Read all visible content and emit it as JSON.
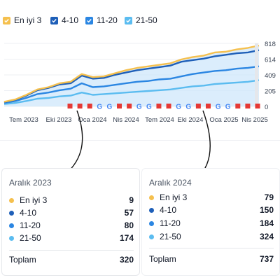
{
  "legend": [
    {
      "label": "En iyi 3",
      "color": "#f5c04e"
    },
    {
      "label": "4-10",
      "color": "#1e5fb8"
    },
    {
      "label": "11-20",
      "color": "#2b86e2"
    },
    {
      "label": "21-50",
      "color": "#5bbcf0"
    }
  ],
  "chart_data": {
    "type": "area",
    "x_ticks": [
      "Tem 2023",
      "Eki 2023",
      "Oca 2024",
      "Nis 2024",
      "Tem 2024",
      "Eki 2024",
      "Oca 2025",
      "Nis 2025"
    ],
    "y_ticks": [
      "818",
      "614",
      "409",
      "205",
      "0"
    ],
    "ylim": [
      0,
      818
    ],
    "x": [
      "2023-05",
      "2023-06",
      "2023-07",
      "2023-08",
      "2023-09",
      "2023-10",
      "2023-11",
      "2023-12",
      "2024-01",
      "2024-02",
      "2024-03",
      "2024-04",
      "2024-05",
      "2024-06",
      "2024-07",
      "2024-08",
      "2024-09",
      "2024-10",
      "2024-11",
      "2024-12",
      "2025-01",
      "2025-02",
      "2025-03",
      "2025-04"
    ],
    "series": [
      {
        "name": "En iyi 3",
        "color": "#f5c04e",
        "values": [
          60,
          90,
          150,
          220,
          250,
          300,
          320,
          420,
          380,
          390,
          430,
          470,
          500,
          520,
          540,
          560,
          610,
          640,
          660,
          700,
          710,
          740,
          760,
          790
        ]
      },
      {
        "name": "4-10",
        "color": "#1e5fb8",
        "values": [
          55,
          85,
          140,
          210,
          240,
          285,
          300,
          400,
          360,
          370,
          410,
          440,
          470,
          490,
          510,
          530,
          580,
          600,
          620,
          650,
          670,
          690,
          700,
          730
        ]
      },
      {
        "name": "11-20",
        "color": "#2b86e2",
        "values": [
          45,
          70,
          110,
          160,
          180,
          210,
          230,
          300,
          250,
          260,
          280,
          300,
          320,
          330,
          350,
          360,
          390,
          420,
          440,
          460,
          470,
          490,
          500,
          520
        ]
      },
      {
        "name": "21-50",
        "color": "#5bbcf0",
        "values": [
          30,
          45,
          70,
          100,
          110,
          130,
          140,
          180,
          150,
          160,
          170,
          180,
          190,
          200,
          210,
          220,
          240,
          260,
          270,
          290,
          300,
          310,
          320,
          340
        ]
      }
    ],
    "markers": [
      "red",
      "red",
      "red",
      "google",
      "google",
      "red",
      "red",
      "google",
      "google",
      "red",
      "red",
      "google",
      "google",
      "red",
      "red",
      "google",
      "google",
      "red",
      "red",
      "red"
    ]
  },
  "cards": [
    {
      "title": "Aralık 2023",
      "rows": [
        {
          "label": "En iyi 3",
          "value": "9",
          "color": "#f5c04e"
        },
        {
          "label": "4-10",
          "value": "57",
          "color": "#1e5fb8"
        },
        {
          "label": "11-20",
          "value": "80",
          "color": "#2b86e2"
        },
        {
          "label": "21-50",
          "value": "174",
          "color": "#5bbcf0"
        }
      ],
      "total_label": "Toplam",
      "total_value": "320"
    },
    {
      "title": "Aralık 2024",
      "rows": [
        {
          "label": "En iyi 3",
          "value": "79",
          "color": "#f5c04e"
        },
        {
          "label": "4-10",
          "value": "150",
          "color": "#1e5fb8"
        },
        {
          "label": "11-20",
          "value": "184",
          "color": "#2b86e2"
        },
        {
          "label": "21-50",
          "value": "324",
          "color": "#5bbcf0"
        }
      ],
      "total_label": "Toplam",
      "total_value": "737"
    }
  ]
}
